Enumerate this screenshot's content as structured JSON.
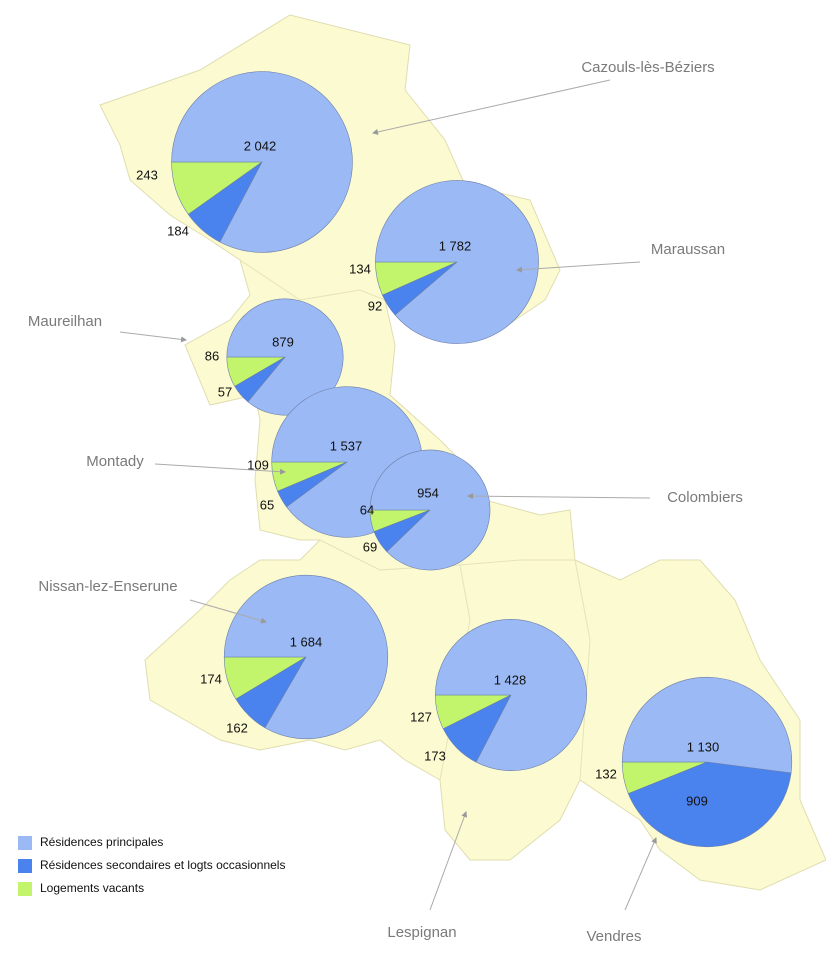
{
  "legend": [
    {
      "label": "Résidences principales",
      "color": "#9bb9f5"
    },
    {
      "label": "Résidences secondaires et logts occasionnels",
      "color": "#4a82ee"
    },
    {
      "label": "Logements vacants",
      "color": "#c2f56c"
    }
  ],
  "communes": [
    {
      "name": "Cazouls-lès-Béziers",
      "values": [
        2042,
        184,
        243
      ],
      "value_labels": [
        "2 042",
        "184",
        "243"
      ]
    },
    {
      "name": "Maraussan",
      "values": [
        1782,
        92,
        134
      ],
      "value_labels": [
        "1 782",
        "92",
        "134"
      ]
    },
    {
      "name": "Maureilhan",
      "values": [
        879,
        57,
        86
      ],
      "value_labels": [
        "879",
        "57",
        "86"
      ]
    },
    {
      "name": "Montady",
      "values": [
        1537,
        65,
        109
      ],
      "value_labels": [
        "1 537",
        "65",
        "109"
      ]
    },
    {
      "name": "Colombiers",
      "values": [
        954,
        69,
        64
      ],
      "value_labels": [
        "954",
        "69",
        "64"
      ]
    },
    {
      "name": "Nissan-lez-Enserune",
      "values": [
        1684,
        162,
        174
      ],
      "value_labels": [
        "1 684",
        "162",
        "174"
      ]
    },
    {
      "name": "Lespignan",
      "values": [
        1428,
        173,
        127
      ],
      "value_labels": [
        "1 428",
        "173",
        "127"
      ]
    },
    {
      "name": "Vendres",
      "values": [
        1130,
        909,
        132
      ],
      "value_labels": [
        "1 130",
        "909",
        "132"
      ]
    }
  ]
}
